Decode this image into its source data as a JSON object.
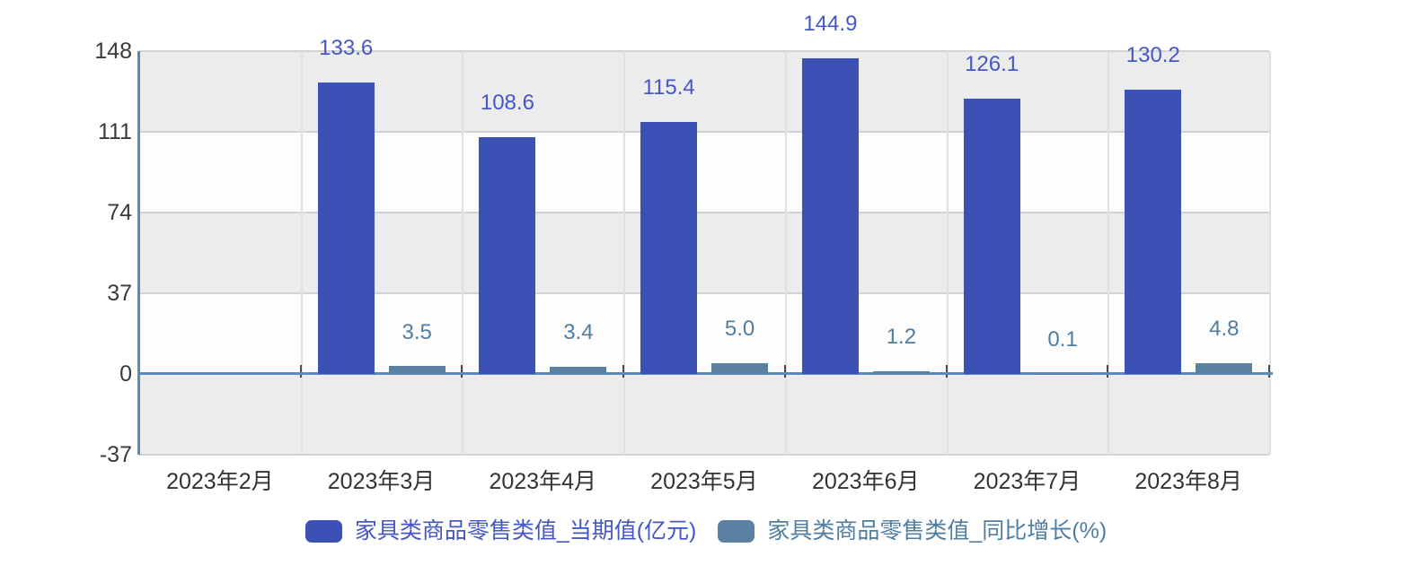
{
  "chart_data": {
    "type": "bar",
    "title": "",
    "categories": [
      "2023年2月",
      "2023年3月",
      "2023年4月",
      "2023年5月",
      "2023年6月",
      "2023年7月",
      "2023年8月"
    ],
    "series": [
      {
        "name": "家具类商品零售类值_当期值(亿元)",
        "color": "#3c51b5",
        "label_color": "#4457c6",
        "values": [
          null,
          133.6,
          108.6,
          115.4,
          144.9,
          126.1,
          130.2
        ],
        "labels": [
          "",
          "133.6",
          "108.6",
          "115.4",
          "144.9",
          "126.1",
          "130.2"
        ]
      },
      {
        "name": "家具类商品零售类值_同比增长(%)",
        "color": "#5a81a1",
        "label_color": "#4f7ea1",
        "values": [
          null,
          3.5,
          3.4,
          5.0,
          1.2,
          0.1,
          4.8
        ],
        "labels": [
          "",
          "3.5",
          "3.4",
          "5.0",
          "1.2",
          "0.1",
          "4.8"
        ]
      }
    ],
    "y_axis": {
      "ticks": [
        148,
        111,
        74,
        37,
        0,
        -37
      ],
      "min": -37,
      "max": 148
    },
    "x_axis": {
      "tick_marks": true
    },
    "legend_position": "bottom",
    "grid": true
  },
  "colors": {
    "background": "#ffffff",
    "axis_line": "#5a8ab9",
    "grid_line": "#d2d2d2",
    "grid_line_vertical": "#e0e0e0",
    "band_dark": "#ececec",
    "band_light": "#fdfdfd",
    "axis_tick": "#4a4a4a",
    "axis_text": "#3a3a3a"
  }
}
